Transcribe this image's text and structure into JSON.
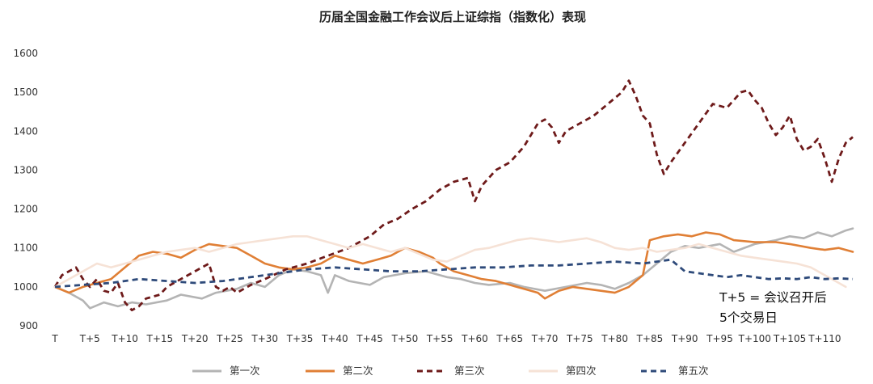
{
  "chart_data": {
    "type": "line",
    "title": "历届全国金融工作会议后上证综指（指数化）表现",
    "xlabel": "",
    "ylabel": "",
    "ylim": [
      900,
      1600
    ],
    "yticks": [
      "900",
      "1000",
      "1100",
      "1200",
      "1300",
      "1400",
      "1500",
      "1600"
    ],
    "xticks": [
      "T",
      "T+5",
      "T+10",
      "T+15",
      "T+20",
      "T+25",
      "T+30",
      "T+35",
      "T+40",
      "T+45",
      "T+50",
      "T+55",
      "T+60",
      "T+65",
      "T+70",
      "T+75",
      "T+80",
      "T+85",
      "T+90",
      "T+95",
      "T+100",
      "T+105",
      "T+110"
    ],
    "grid": false,
    "legend_position": "bottom",
    "annotation": [
      "T+5 = 会议召开后",
      "5个交易日"
    ],
    "series": [
      {
        "name": "第一次",
        "color": "#b4b4b4",
        "dash": "solid",
        "points": [
          [
            0,
            1000
          ],
          [
            2,
            985
          ],
          [
            4,
            965
          ],
          [
            5,
            945
          ],
          [
            7,
            960
          ],
          [
            9,
            950
          ],
          [
            11,
            960
          ],
          [
            13,
            955
          ],
          [
            16,
            965
          ],
          [
            18,
            980
          ],
          [
            21,
            970
          ],
          [
            23,
            985
          ],
          [
            26,
            995
          ],
          [
            28,
            1010
          ],
          [
            30,
            1000
          ],
          [
            32,
            1030
          ],
          [
            34,
            1045
          ],
          [
            36,
            1040
          ],
          [
            38,
            1030
          ],
          [
            39,
            985
          ],
          [
            40,
            1030
          ],
          [
            42,
            1015
          ],
          [
            45,
            1005
          ],
          [
            47,
            1025
          ],
          [
            50,
            1035
          ],
          [
            53,
            1040
          ],
          [
            56,
            1025
          ],
          [
            58,
            1020
          ],
          [
            60,
            1010
          ],
          [
            62,
            1005
          ],
          [
            65,
            1010
          ],
          [
            67,
            1000
          ],
          [
            70,
            990
          ],
          [
            73,
            1000
          ],
          [
            76,
            1010
          ],
          [
            78,
            1005
          ],
          [
            80,
            995
          ],
          [
            82,
            1010
          ],
          [
            84,
            1030
          ],
          [
            86,
            1060
          ],
          [
            88,
            1090
          ],
          [
            90,
            1105
          ],
          [
            92,
            1100
          ],
          [
            95,
            1110
          ],
          [
            97,
            1090
          ],
          [
            100,
            1110
          ],
          [
            103,
            1120
          ],
          [
            105,
            1130
          ],
          [
            107,
            1125
          ],
          [
            109,
            1140
          ],
          [
            111,
            1130
          ],
          [
            113,
            1145
          ],
          [
            114,
            1150
          ]
        ]
      },
      {
        "name": "第二次",
        "color": "#e07f35",
        "dash": "solid",
        "points": [
          [
            0,
            1000
          ],
          [
            2,
            985
          ],
          [
            4,
            1000
          ],
          [
            6,
            1010
          ],
          [
            8,
            1020
          ],
          [
            10,
            1050
          ],
          [
            12,
            1080
          ],
          [
            14,
            1090
          ],
          [
            16,
            1085
          ],
          [
            18,
            1075
          ],
          [
            20,
            1095
          ],
          [
            22,
            1110
          ],
          [
            24,
            1105
          ],
          [
            26,
            1100
          ],
          [
            28,
            1080
          ],
          [
            30,
            1060
          ],
          [
            32,
            1050
          ],
          [
            34,
            1045
          ],
          [
            36,
            1050
          ],
          [
            38,
            1060
          ],
          [
            40,
            1080
          ],
          [
            42,
            1070
          ],
          [
            44,
            1060
          ],
          [
            46,
            1070
          ],
          [
            48,
            1080
          ],
          [
            50,
            1100
          ],
          [
            52,
            1090
          ],
          [
            54,
            1075
          ],
          [
            55,
            1060
          ],
          [
            57,
            1040
          ],
          [
            59,
            1030
          ],
          [
            61,
            1020
          ],
          [
            63,
            1015
          ],
          [
            65,
            1005
          ],
          [
            67,
            995
          ],
          [
            69,
            985
          ],
          [
            70,
            970
          ],
          [
            72,
            990
          ],
          [
            74,
            1000
          ],
          [
            76,
            995
          ],
          [
            78,
            990
          ],
          [
            80,
            985
          ],
          [
            82,
            1000
          ],
          [
            84,
            1030
          ],
          [
            85,
            1120
          ],
          [
            87,
            1130
          ],
          [
            89,
            1135
          ],
          [
            91,
            1130
          ],
          [
            93,
            1140
          ],
          [
            95,
            1135
          ],
          [
            97,
            1120
          ],
          [
            100,
            1115
          ],
          [
            103,
            1115
          ],
          [
            105,
            1110
          ],
          [
            108,
            1100
          ],
          [
            110,
            1095
          ],
          [
            112,
            1100
          ],
          [
            114,
            1090
          ]
        ]
      },
      {
        "name": "第三次",
        "color": "#6e1a1a",
        "dash": "dashed",
        "points": [
          [
            0,
            1000
          ],
          [
            1,
            1030
          ],
          [
            2,
            1040
          ],
          [
            3,
            1050
          ],
          [
            4,
            1020
          ],
          [
            5,
            1000
          ],
          [
            6,
            1020
          ],
          [
            7,
            990
          ],
          [
            8,
            985
          ],
          [
            9,
            1010
          ],
          [
            10,
            960
          ],
          [
            11,
            940
          ],
          [
            12,
            950
          ],
          [
            13,
            970
          ],
          [
            15,
            980
          ],
          [
            16,
            1000
          ],
          [
            18,
            1020
          ],
          [
            20,
            1040
          ],
          [
            21,
            1050
          ],
          [
            22,
            1060
          ],
          [
            23,
            1000
          ],
          [
            24,
            990
          ],
          [
            25,
            1000
          ],
          [
            26,
            985
          ],
          [
            28,
            1005
          ],
          [
            30,
            1020
          ],
          [
            33,
            1045
          ],
          [
            36,
            1060
          ],
          [
            39,
            1080
          ],
          [
            42,
            1100
          ],
          [
            45,
            1130
          ],
          [
            47,
            1160
          ],
          [
            49,
            1175
          ],
          [
            51,
            1200
          ],
          [
            53,
            1220
          ],
          [
            55,
            1250
          ],
          [
            57,
            1270
          ],
          [
            59,
            1280
          ],
          [
            60,
            1220
          ],
          [
            61,
            1260
          ],
          [
            63,
            1300
          ],
          [
            65,
            1320
          ],
          [
            67,
            1360
          ],
          [
            69,
            1420
          ],
          [
            70,
            1430
          ],
          [
            71,
            1410
          ],
          [
            72,
            1370
          ],
          [
            73,
            1400
          ],
          [
            75,
            1420
          ],
          [
            77,
            1440
          ],
          [
            79,
            1470
          ],
          [
            81,
            1500
          ],
          [
            82,
            1530
          ],
          [
            83,
            1490
          ],
          [
            84,
            1440
          ],
          [
            85,
            1420
          ],
          [
            86,
            1340
          ],
          [
            87,
            1290
          ],
          [
            88,
            1320
          ],
          [
            90,
            1370
          ],
          [
            92,
            1420
          ],
          [
            94,
            1470
          ],
          [
            96,
            1460
          ],
          [
            97,
            1480
          ],
          [
            98,
            1500
          ],
          [
            99,
            1505
          ],
          [
            100,
            1480
          ],
          [
            101,
            1460
          ],
          [
            102,
            1420
          ],
          [
            103,
            1390
          ],
          [
            104,
            1410
          ],
          [
            105,
            1440
          ],
          [
            106,
            1380
          ],
          [
            107,
            1350
          ],
          [
            108,
            1360
          ],
          [
            109,
            1380
          ],
          [
            110,
            1330
          ],
          [
            111,
            1270
          ],
          [
            112,
            1330
          ],
          [
            113,
            1370
          ],
          [
            114,
            1385
          ]
        ]
      },
      {
        "name": "第四次",
        "color": "#f6e2d6",
        "dash": "solid",
        "points": [
          [
            0,
            1000
          ],
          [
            2,
            1020
          ],
          [
            4,
            1040
          ],
          [
            6,
            1060
          ],
          [
            8,
            1050
          ],
          [
            10,
            1060
          ],
          [
            12,
            1070
          ],
          [
            14,
            1080
          ],
          [
            16,
            1090
          ],
          [
            18,
            1095
          ],
          [
            20,
            1100
          ],
          [
            22,
            1090
          ],
          [
            24,
            1100
          ],
          [
            26,
            1110
          ],
          [
            28,
            1115
          ],
          [
            30,
            1120
          ],
          [
            32,
            1125
          ],
          [
            34,
            1130
          ],
          [
            36,
            1130
          ],
          [
            38,
            1120
          ],
          [
            40,
            1110
          ],
          [
            42,
            1100
          ],
          [
            44,
            1110
          ],
          [
            46,
            1100
          ],
          [
            48,
            1090
          ],
          [
            50,
            1100
          ],
          [
            52,
            1085
          ],
          [
            54,
            1070
          ],
          [
            56,
            1065
          ],
          [
            58,
            1080
          ],
          [
            60,
            1095
          ],
          [
            62,
            1100
          ],
          [
            64,
            1110
          ],
          [
            66,
            1120
          ],
          [
            68,
            1125
          ],
          [
            70,
            1120
          ],
          [
            72,
            1115
          ],
          [
            74,
            1120
          ],
          [
            76,
            1125
          ],
          [
            78,
            1115
          ],
          [
            80,
            1100
          ],
          [
            82,
            1095
          ],
          [
            84,
            1100
          ],
          [
            86,
            1090
          ],
          [
            88,
            1095
          ],
          [
            90,
            1100
          ],
          [
            92,
            1110
          ],
          [
            94,
            1100
          ],
          [
            96,
            1090
          ],
          [
            98,
            1080
          ],
          [
            100,
            1075
          ],
          [
            102,
            1070
          ],
          [
            104,
            1065
          ],
          [
            106,
            1060
          ],
          [
            108,
            1050
          ],
          [
            110,
            1030
          ],
          [
            112,
            1010
          ],
          [
            113,
            1000
          ]
        ]
      },
      {
        "name": "第五次",
        "color": "#2e4a7a",
        "dash": "dashed",
        "points": [
          [
            0,
            1000
          ],
          [
            4,
            1005
          ],
          [
            8,
            1010
          ],
          [
            12,
            1020
          ],
          [
            16,
            1015
          ],
          [
            20,
            1010
          ],
          [
            24,
            1015
          ],
          [
            28,
            1025
          ],
          [
            32,
            1035
          ],
          [
            36,
            1045
          ],
          [
            40,
            1050
          ],
          [
            44,
            1045
          ],
          [
            48,
            1040
          ],
          [
            52,
            1040
          ],
          [
            56,
            1045
          ],
          [
            60,
            1050
          ],
          [
            64,
            1050
          ],
          [
            68,
            1055
          ],
          [
            72,
            1055
          ],
          [
            76,
            1060
          ],
          [
            80,
            1065
          ],
          [
            84,
            1060
          ],
          [
            88,
            1070
          ],
          [
            90,
            1040
          ],
          [
            92,
            1035
          ],
          [
            94,
            1030
          ],
          [
            96,
            1025
          ],
          [
            98,
            1030
          ],
          [
            100,
            1025
          ],
          [
            102,
            1020
          ],
          [
            104,
            1022
          ],
          [
            106,
            1020
          ],
          [
            108,
            1025
          ],
          [
            110,
            1020
          ],
          [
            112,
            1022
          ],
          [
            114,
            1020
          ]
        ]
      }
    ]
  }
}
